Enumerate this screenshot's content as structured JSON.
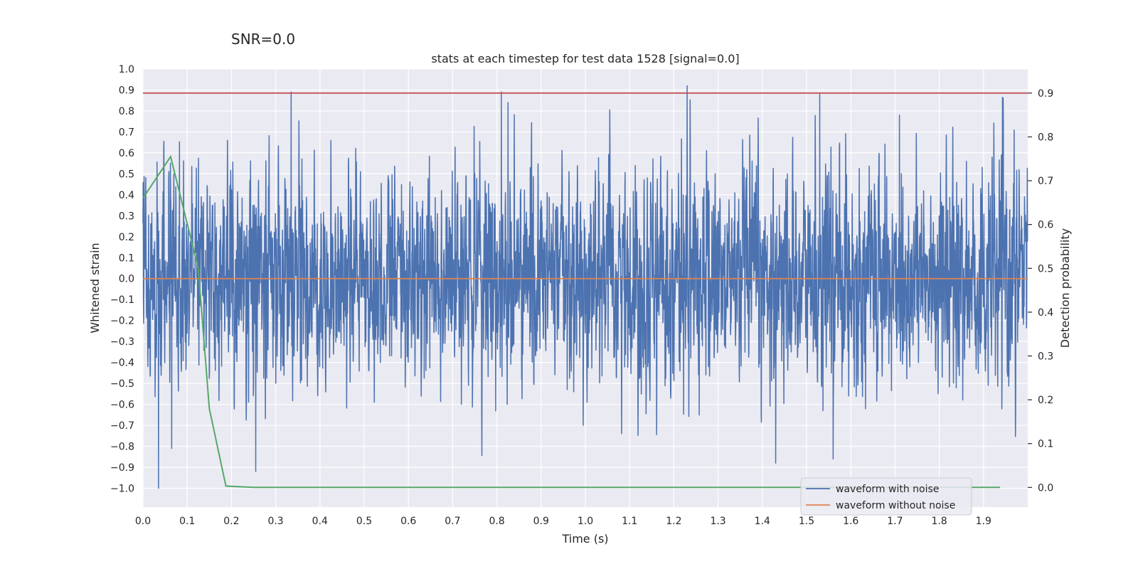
{
  "figure_text": {
    "snr": "SNR=0.0"
  },
  "colors": {
    "plot_bg": "#eaeaf2",
    "grid": "#ffffff",
    "waveform_with_noise": "#4c72b0",
    "waveform_without_noise": "#dd8452",
    "detection_probability": "#55a868",
    "threshold": "#c44e52"
  },
  "chart_data": {
    "type": "line",
    "title": "stats at each timestep for test data 1528 [signal=0.0]",
    "xlabel": "Time (s)",
    "ylabel": "Whitened strain",
    "ylabel_right": "Detection probability",
    "xlim": [
      0.0,
      2.0
    ],
    "ylim": [
      -1.09,
      1.0
    ],
    "ylim_right": [
      -0.045,
      0.955
    ],
    "grid": true,
    "legend_position": "lower-right",
    "x_ticks": [
      0.0,
      0.1,
      0.2,
      0.3,
      0.4,
      0.5,
      0.6,
      0.7,
      0.8,
      0.9,
      1.0,
      1.1,
      1.2,
      1.3,
      1.4,
      1.5,
      1.6,
      1.7,
      1.8,
      1.9
    ],
    "x_tick_labels": [
      "0.0",
      "0.1",
      "0.2",
      "0.3",
      "0.4",
      "0.5",
      "0.6",
      "0.7",
      "0.8",
      "0.9",
      "1.0",
      "1.1",
      "1.2",
      "1.3",
      "1.4",
      "1.5",
      "1.6",
      "1.7",
      "1.8",
      "1.9"
    ],
    "y_ticks": [
      1.0,
      0.9,
      0.8,
      0.7,
      0.6,
      0.5,
      0.4,
      0.3,
      0.2,
      0.1,
      0.0,
      -0.1,
      -0.2,
      -0.3,
      -0.4,
      -0.5,
      -0.6,
      -0.7,
      -0.8,
      -0.9,
      -1.0
    ],
    "y_tick_labels": [
      "1.0",
      "0.9",
      "0.8",
      "0.7",
      "0.6",
      "0.5",
      "0.4",
      "0.3",
      "0.2",
      "0.1",
      "0.0",
      "−0.1",
      "−0.2",
      "−0.3",
      "−0.4",
      "−0.5",
      "−0.6",
      "−0.7",
      "−0.8",
      "−0.9",
      "−1.0"
    ],
    "y_right_ticks": [
      0.9,
      0.8,
      0.7,
      0.6,
      0.5,
      0.4,
      0.3,
      0.2,
      0.1,
      0.0
    ],
    "y_right_tick_labels": [
      "0.9",
      "0.8",
      "0.7",
      "0.6",
      "0.5",
      "0.4",
      "0.3",
      "0.2",
      "0.1",
      "0.0"
    ],
    "series": [
      {
        "name": "waveform with noise",
        "axis": "left",
        "style": "noise",
        "sample_rate": 2048,
        "duration": 2.0,
        "approx_std": 0.3,
        "peaks": [
          {
            "x": 0.035,
            "y": -1.0
          },
          {
            "x": 0.065,
            "y": -0.81
          },
          {
            "x": 0.255,
            "y": -0.92
          },
          {
            "x": 0.335,
            "y": 0.89
          },
          {
            "x": 0.81,
            "y": 0.89
          },
          {
            "x": 0.825,
            "y": 0.84
          },
          {
            "x": 1.23,
            "y": 0.92
          },
          {
            "x": 1.43,
            "y": -0.88
          },
          {
            "x": 1.53,
            "y": 0.88
          },
          {
            "x": 1.71,
            "y": 0.78
          },
          {
            "x": 1.56,
            "y": -0.86
          },
          {
            "x": 0.995,
            "y": -0.7
          }
        ]
      },
      {
        "name": "waveform without noise",
        "axis": "left",
        "x": [
          0.0,
          2.0
        ],
        "y": [
          0.0,
          0.0
        ]
      },
      {
        "name": "detection probability",
        "axis": "right",
        "x": [
          0.0,
          0.0625,
          0.1875,
          0.25,
          1.9375
        ],
        "y": [
          0.66,
          0.755,
          0.003,
          0.0,
          0.0
        ],
        "extra_points": [
          {
            "x": 0.125,
            "y": 0.5
          },
          {
            "x": 0.15,
            "y": 0.18
          }
        ]
      },
      {
        "name": "threshold",
        "axis": "right",
        "x": [
          0.0,
          2.0
        ],
        "y": [
          0.9,
          0.9
        ]
      }
    ],
    "legend": [
      "waveform with noise",
      "waveform without noise"
    ]
  }
}
